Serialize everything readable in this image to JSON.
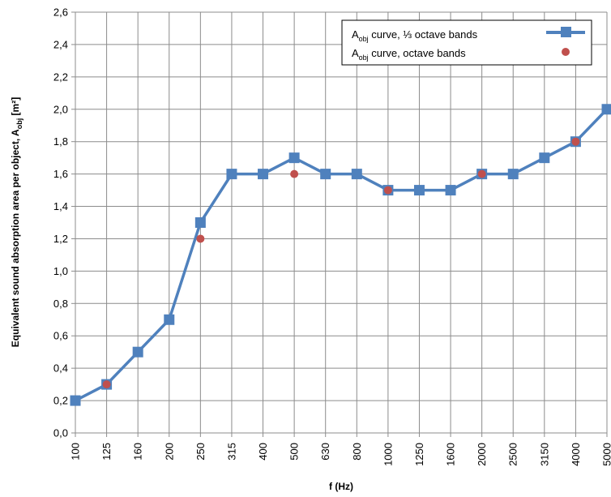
{
  "chart_data": {
    "type": "line",
    "title": "",
    "xlabel": "f (Hz)",
    "ylabel": {
      "prefix": "Equivalent sound absorption area per object, A",
      "sub": "obj",
      "suffix": " [m²]"
    },
    "categories": [
      "100",
      "125",
      "160",
      "200",
      "250",
      "315",
      "400",
      "500",
      "630",
      "800",
      "1000",
      "1250",
      "1600",
      "2000",
      "2500",
      "3150",
      "4000",
      "5000"
    ],
    "ylim": [
      0,
      2.6
    ],
    "ytick_labels": [
      "0,0",
      "0,2",
      "0,4",
      "0,6",
      "0,8",
      "1,0",
      "1,2",
      "1,4",
      "1,6",
      "1,8",
      "2,0",
      "2,2",
      "2,4",
      "2,6"
    ],
    "grid": true,
    "legend_position": "top-right",
    "series": [
      {
        "legend_main": "A",
        "legend_sub": "obj",
        "legend_rest": " curve, ⅓ octave bands",
        "style": "line-square",
        "color": "#4f81bd",
        "values": [
          0.2,
          0.3,
          0.5,
          0.7,
          1.3,
          1.6,
          1.6,
          1.7,
          1.6,
          1.6,
          1.5,
          1.5,
          1.5,
          1.6,
          1.6,
          1.7,
          1.8,
          2.0
        ]
      },
      {
        "legend_main": "A",
        "legend_sub": "obj",
        "legend_rest": " curve, octave bands",
        "style": "circle",
        "color": "#c0504d",
        "points": [
          {
            "x": "125",
            "y": 0.3
          },
          {
            "x": "250",
            "y": 1.2
          },
          {
            "x": "500",
            "y": 1.6
          },
          {
            "x": "1000",
            "y": 1.5
          },
          {
            "x": "2000",
            "y": 1.6
          },
          {
            "x": "4000",
            "y": 1.8
          }
        ]
      }
    ]
  }
}
